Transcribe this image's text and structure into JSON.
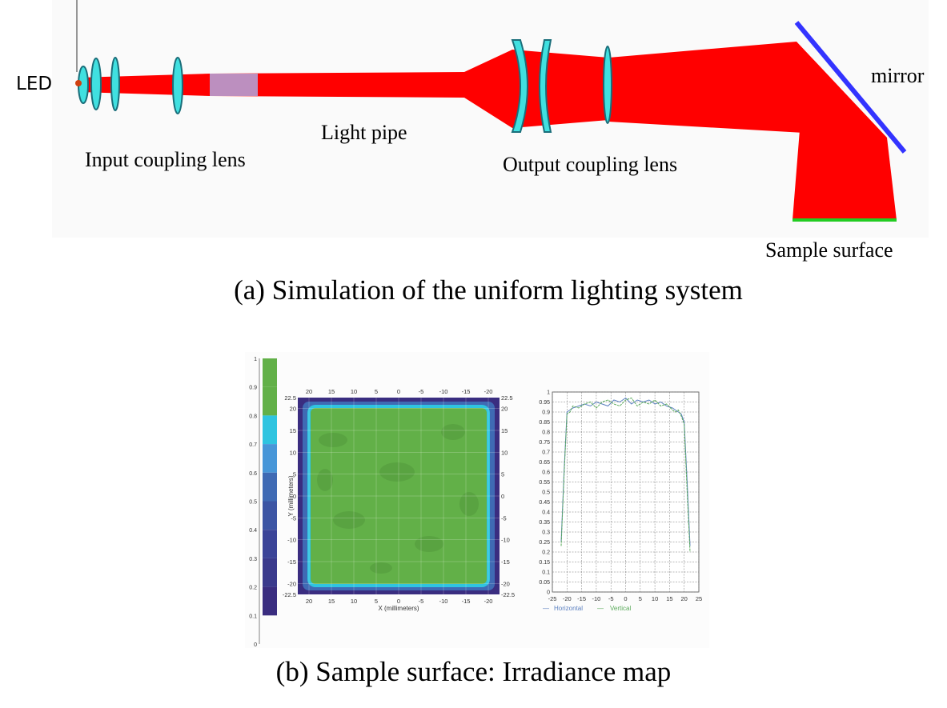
{
  "top": {
    "labels": {
      "led": "LED",
      "input_lens": "Input coupling lens",
      "light_pipe": "Light pipe",
      "output_lens": "Output coupling lens",
      "mirror": "mirror",
      "sample_surface": "Sample surface"
    },
    "caption": "(a) Simulation of the uniform lighting system",
    "colors": {
      "rays": "#ff0000",
      "lens": "#40e0e0",
      "lens_edge": "#1a6e7a",
      "pipe": "#b0a8e0",
      "mirror": "#3333ff",
      "sample": "#22cc22"
    }
  },
  "bottom": {
    "caption": "(b) Sample surface: Irradiance map",
    "colorbar": {
      "ticks": [
        "1",
        "0.9",
        "0.8",
        "0.7",
        "0.6",
        "0.5",
        "0.4",
        "0.3",
        "0.2",
        "0.1",
        "0"
      ],
      "values": [
        1,
        0.9,
        0.8,
        0.7,
        0.6,
        0.5,
        0.4,
        0.3,
        0.2,
        0.1,
        0
      ],
      "colors": [
        "#62b048",
        "#62b048",
        "#2fc4e0",
        "#4796d8",
        "#3f6ab4",
        "#3c55a4",
        "#3b4498",
        "#3a3a8c",
        "#3a2d80",
        "#2e1a60"
      ]
    },
    "map": {
      "x_ticks_top": [
        "20",
        "15",
        "10",
        "5",
        "0",
        "-5",
        "-10",
        "-15",
        "-20"
      ],
      "x_ticks_bottom": [
        "20",
        "15",
        "10",
        "5",
        "0",
        "-5",
        "-10",
        "-15",
        "-20"
      ],
      "y_ticks_left": [
        "22.5",
        "20",
        "15",
        "10",
        "5",
        "0",
        "-5",
        "-10",
        "-15",
        "-20",
        "-22.5"
      ],
      "y_ticks_right": [
        "22.5",
        "20",
        "15",
        "10",
        "5",
        "0",
        "-5",
        "-10",
        "-15",
        "-20",
        "-22.5"
      ],
      "xlabel": "X (millimeters)",
      "ylabel": "Y (millimeters)"
    },
    "profile": {
      "y_ticks": [
        "1",
        "0.95",
        "0.9",
        "0.85",
        "0.8",
        "0.75",
        "0.7",
        "0.65",
        "0.6",
        "0.55",
        "0.5",
        "0.45",
        "0.4",
        "0.35",
        "0.3",
        "0.25",
        "0.2",
        "0.15",
        "0.1",
        "0.05",
        "0"
      ],
      "x_ticks": [
        "-25",
        "-20",
        "-15",
        "-10",
        "-5",
        "0",
        "5",
        "10",
        "15",
        "20",
        "25"
      ],
      "legend_horizontal": "Horizontal",
      "legend_vertical": "Vertical",
      "legend_dash": "—"
    }
  },
  "chart_data": {
    "type": "line",
    "x": [
      -22,
      -21,
      -20,
      -19,
      -18,
      -16,
      -14,
      -12,
      -10,
      -8,
      -6,
      -4,
      -2,
      0,
      2,
      4,
      6,
      8,
      10,
      12,
      14,
      16,
      17,
      18,
      19,
      20,
      21,
      22
    ],
    "series": [
      {
        "name": "Horizontal",
        "values": [
          0.25,
          0.6,
          0.9,
          0.91,
          0.92,
          0.93,
          0.94,
          0.93,
          0.95,
          0.94,
          0.93,
          0.96,
          0.95,
          0.97,
          0.94,
          0.96,
          0.95,
          0.96,
          0.94,
          0.95,
          0.93,
          0.92,
          0.91,
          0.9,
          0.89,
          0.85,
          0.55,
          0.23
        ]
      },
      {
        "name": "Vertical",
        "values": [
          0.23,
          0.58,
          0.89,
          0.9,
          0.93,
          0.92,
          0.94,
          0.95,
          0.92,
          0.95,
          0.96,
          0.94,
          0.93,
          0.96,
          0.97,
          0.93,
          0.95,
          0.94,
          0.96,
          0.93,
          0.94,
          0.91,
          0.9,
          0.91,
          0.88,
          0.84,
          0.5,
          0.2
        ]
      }
    ],
    "xlim": [
      -25,
      25
    ],
    "ylim": [
      0,
      1
    ],
    "grid": true,
    "legend": "bottom"
  }
}
